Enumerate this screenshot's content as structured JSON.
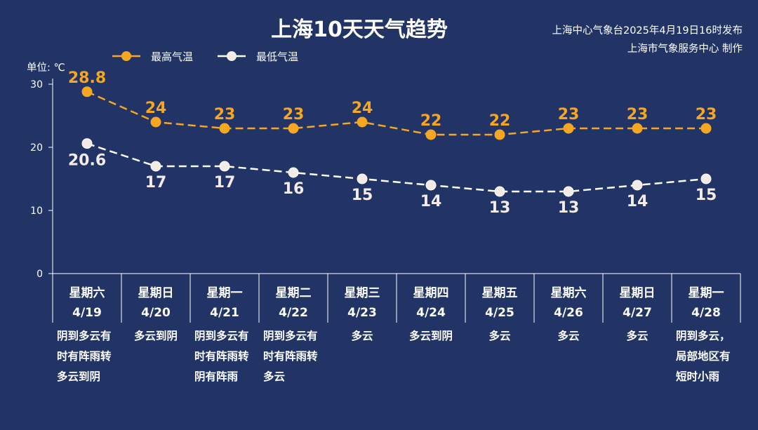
{
  "chart_data": {
    "type": "line",
    "title": "上海10天天气趋势",
    "source_line1": "上海中心气象台2025年4月19日16时发布",
    "source_line2": "上海市气象服务中心 制作",
    "unit_label": "单位: ℃",
    "ylim": [
      0,
      30
    ],
    "yticks": [
      "0",
      "10",
      "20",
      "30"
    ],
    "legend_position": "top-left",
    "colors": {
      "background": "#223366",
      "high": "#f5a623",
      "low": "#ffffff",
      "low_fill": "#f3ece6",
      "axis": "#ffffff"
    },
    "days": [
      {
        "weekday": "星期六",
        "date": "4/19",
        "weather": [
          "阴到多云有",
          "时有阵雨转",
          "多云到阴"
        ]
      },
      {
        "weekday": "星期日",
        "date": "4/20",
        "weather": [
          "多云到阴"
        ]
      },
      {
        "weekday": "星期一",
        "date": "4/21",
        "weather": [
          "阴到多云有",
          "时有阵雨转",
          "阴有阵雨"
        ]
      },
      {
        "weekday": "星期二",
        "date": "4/22",
        "weather": [
          "阴到多云有",
          "时有阵雨转",
          "多云"
        ]
      },
      {
        "weekday": "星期三",
        "date": "4/23",
        "weather": [
          "多云"
        ]
      },
      {
        "weekday": "星期四",
        "date": "4/24",
        "weather": [
          "多云到阴"
        ]
      },
      {
        "weekday": "星期五",
        "date": "4/25",
        "weather": [
          "多云"
        ]
      },
      {
        "weekday": "星期六",
        "date": "4/26",
        "weather": [
          "多云"
        ]
      },
      {
        "weekday": "星期日",
        "date": "4/27",
        "weather": [
          "多云"
        ]
      },
      {
        "weekday": "星期一",
        "date": "4/28",
        "weather": [
          "阴到多云，",
          "局部地区有",
          "短时小雨"
        ]
      }
    ],
    "series": [
      {
        "name": "最高气温",
        "key": "high",
        "values": [
          28.8,
          24,
          23,
          23,
          24,
          22,
          22,
          23,
          23,
          23
        ],
        "labels": [
          "28.8",
          "24",
          "23",
          "23",
          "24",
          "22",
          "22",
          "23",
          "23",
          "23"
        ]
      },
      {
        "name": "最低气温",
        "key": "low",
        "values": [
          20.6,
          17,
          17,
          16,
          15,
          14,
          13,
          13,
          14,
          15
        ],
        "labels": [
          "20.6",
          "17",
          "17",
          "16",
          "15",
          "14",
          "13",
          "13",
          "14",
          "15"
        ]
      }
    ]
  }
}
